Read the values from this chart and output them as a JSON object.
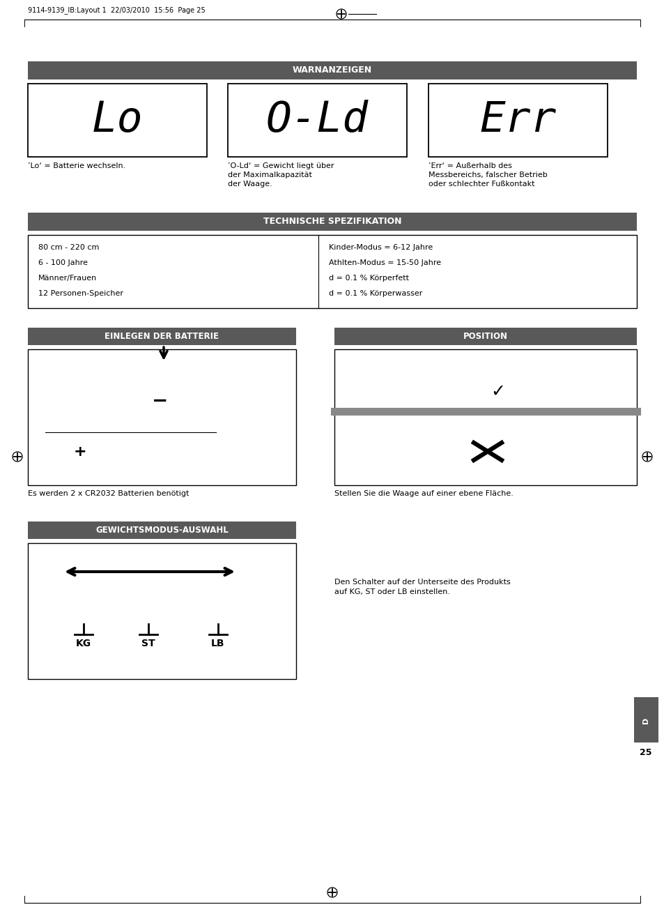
{
  "page_bg": "#ffffff",
  "header_text": "9114-9139_IB:Layout 1  22/03/2010  15:56  Page 25",
  "section_bg": "#595959",
  "section_text_color": "#ffffff",
  "spec_left": [
    "80 cm - 220 cm",
    "6 - 100 Jahre",
    "Männer/Frauen",
    "12 Personen-Speicher"
  ],
  "spec_right": [
    "Kinder-Modus = 6-12 Jahre",
    "Athlten-Modus = 15-50 Jahre",
    "d = 0.1 % Körperfett",
    "d = 0.1 % Körperwasser"
  ],
  "battery_caption": "Es werden 2 x CR2032 Batterien benötigt",
  "position_caption": "Stellen Sie die Waage auf einer ebene Fläche.",
  "weight_caption": "Den Schalter auf der Unterseite des Produkts\nauf KG, ST oder LB einstellen.",
  "page_number": "25",
  "side_tab_color": "#595959",
  "side_tab_letter": "D",
  "warn_items": [
    {
      "label": "Lo",
      "desc": "’Lo‘ = Batterie wechseln."
    },
    {
      "label": "O-Ld",
      "desc": "’O-Ld‘ = Gewicht liegt über\nder Maximalkapazität\nder Waage."
    },
    {
      "label": "Err",
      "desc": "’Err‘ = Außerhalb des\nMessbereichs, falscher Betrieb\noder schlechter Fußkontakt"
    }
  ]
}
